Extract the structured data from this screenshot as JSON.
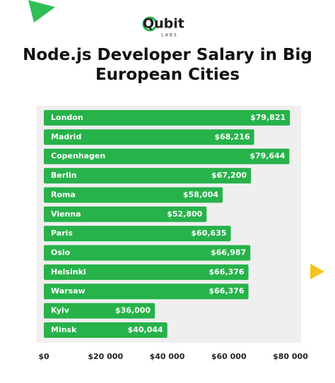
{
  "logo": {
    "name": "Qubit",
    "sub": "LABS"
  },
  "chart_data": {
    "type": "bar",
    "orientation": "horizontal",
    "title": "Node.js Developer Salary in Big European Cities",
    "categories": [
      "London",
      "Madrid",
      "Copenhagen",
      "Berlin",
      "Roma",
      "Vienna",
      "Paris",
      "Oslo",
      "Helsinki",
      "Warsaw",
      "Kyiv",
      "Minsk"
    ],
    "values": [
      79821,
      68216,
      79644,
      67200,
      58004,
      52800,
      60635,
      66987,
      66376,
      66376,
      36000,
      40044
    ],
    "value_labels": [
      "$79,821",
      "$68,216",
      "$79,644",
      "$67,200",
      "$58,004",
      "$52,800",
      "$60,635",
      "$66,987",
      "$66,376",
      "$66,376",
      "$36,000",
      "$40,044"
    ],
    "color": "#27b24a",
    "xlim": [
      0,
      80000
    ],
    "xticks": [
      {
        "value": 0,
        "label": "$0"
      },
      {
        "value": 20000,
        "label": "$20 000"
      },
      {
        "value": 40000,
        "label": "$40 000"
      },
      {
        "value": 60000,
        "label": "$60 000"
      },
      {
        "value": 80000,
        "label": "$80 000"
      }
    ],
    "grid": false
  }
}
